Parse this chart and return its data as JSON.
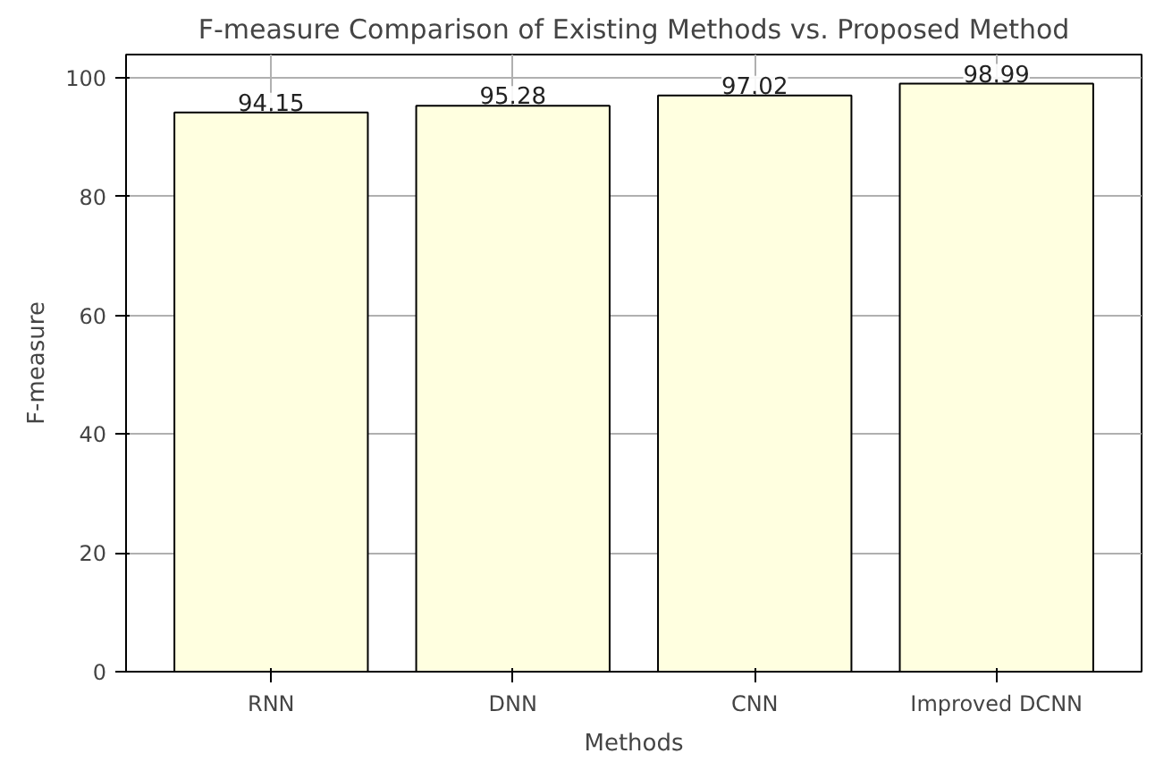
{
  "chart_data": {
    "type": "bar",
    "title": "F-measure Comparison of Existing Methods vs. Proposed Method",
    "xlabel": "Methods",
    "ylabel": "F-measure",
    "categories": [
      "RNN",
      "DNN",
      "CNN",
      "Improved DCNN"
    ],
    "values": [
      94.15,
      95.28,
      97.02,
      98.99
    ],
    "color": "#ffffe0",
    "ylim": [
      0,
      103.9
    ],
    "yticks": [
      0,
      20,
      40,
      60,
      80,
      100
    ],
    "grid": true,
    "data_labels": true
  }
}
